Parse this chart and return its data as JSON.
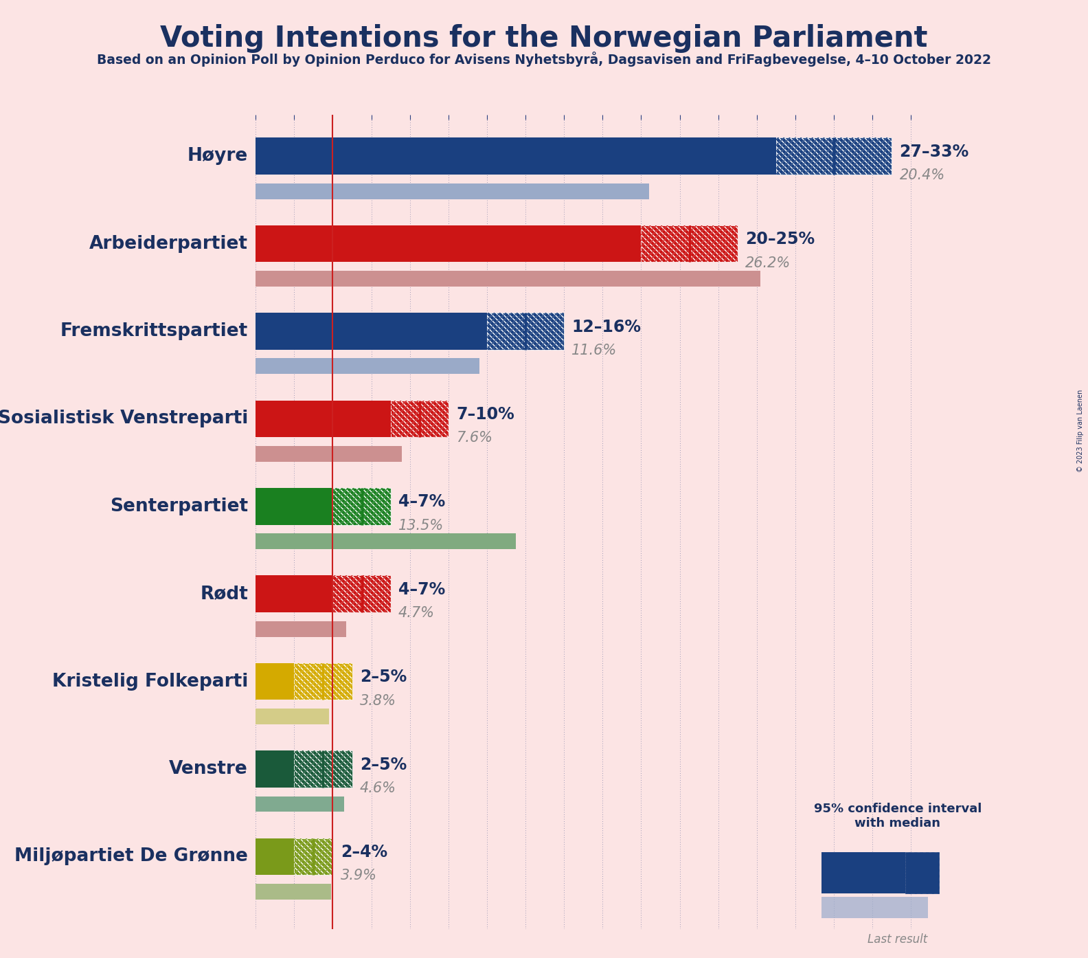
{
  "title": "Voting Intentions for the Norwegian Parliament",
  "subtitle": "Based on an Opinion Poll by Opinion Perduco for Avisens Nyhetsbyrå, Dagsavisen and FriFagbevegelse, 4–10 October 2022",
  "copyright": "© 2023 Filip van Laenen",
  "background_color": "#fce4e4",
  "parties": [
    {
      "name": "Høyre",
      "ci_low": 27,
      "ci_high": 33,
      "median": 30,
      "last_result": 20.4,
      "color": "#1a4080",
      "last_color": "#9aaac8",
      "label_range": "27–33%",
      "label_last": "20.4%"
    },
    {
      "name": "Arbeiderpartiet",
      "ci_low": 20,
      "ci_high": 25,
      "median": 22.5,
      "last_result": 26.2,
      "color": "#cc1515",
      "last_color": "#cc9090",
      "label_range": "20–25%",
      "label_last": "26.2%"
    },
    {
      "name": "Fremskrittspartiet",
      "ci_low": 12,
      "ci_high": 16,
      "median": 14,
      "last_result": 11.6,
      "color": "#1a4080",
      "last_color": "#9aaac8",
      "label_range": "12–16%",
      "label_last": "11.6%"
    },
    {
      "name": "Sosialistisk Venstreparti",
      "ci_low": 7,
      "ci_high": 10,
      "median": 8.5,
      "last_result": 7.6,
      "color": "#cc1515",
      "last_color": "#cc9090",
      "label_range": "7–10%",
      "label_last": "7.6%"
    },
    {
      "name": "Senterpartiet",
      "ci_low": 4,
      "ci_high": 7,
      "median": 5.5,
      "last_result": 13.5,
      "color": "#1a8020",
      "last_color": "#80aa80",
      "label_range": "4–7%",
      "label_last": "13.5%"
    },
    {
      "name": "Rødt",
      "ci_low": 4,
      "ci_high": 7,
      "median": 5.5,
      "last_result": 4.7,
      "color": "#cc1515",
      "last_color": "#cc9090",
      "label_range": "4–7%",
      "label_last": "4.7%"
    },
    {
      "name": "Kristelig Folkeparti",
      "ci_low": 2,
      "ci_high": 5,
      "median": 3.5,
      "last_result": 3.8,
      "color": "#d4aa00",
      "last_color": "#d4cc88",
      "label_range": "2–5%",
      "label_last": "3.8%"
    },
    {
      "name": "Venstre",
      "ci_low": 2,
      "ci_high": 5,
      "median": 3.5,
      "last_result": 4.6,
      "color": "#1a5a3a",
      "last_color": "#80aa90",
      "label_range": "2–5%",
      "label_last": "4.6%"
    },
    {
      "name": "Miljøpartiet De Grønne",
      "ci_low": 2,
      "ci_high": 4,
      "median": 3.0,
      "last_result": 3.9,
      "color": "#7a9a1a",
      "last_color": "#aabb88",
      "label_range": "2–4%",
      "label_last": "3.9%"
    }
  ],
  "ref_line_x": 4.0,
  "xlim_max": 35,
  "title_fontsize": 30,
  "subtitle_fontsize": 13.5,
  "party_fontsize": 19,
  "label_fontsize": 17,
  "last_fontsize": 15
}
